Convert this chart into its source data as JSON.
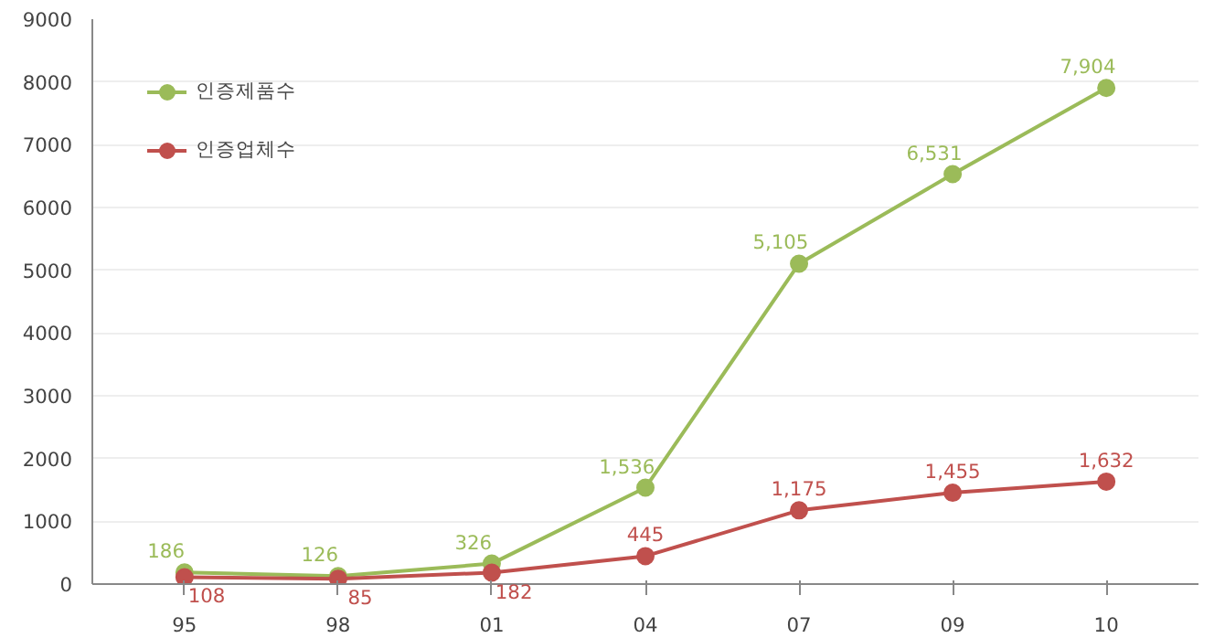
{
  "chart_data": {
    "type": "line",
    "categories": [
      "95",
      "98",
      "01",
      "04",
      "07",
      "09",
      "10"
    ],
    "series": [
      {
        "name": "인증제품수",
        "color": "#9bbb59",
        "values": [
          186,
          126,
          326,
          1536,
          5105,
          6531,
          7904
        ],
        "value_labels": [
          "186",
          "126",
          "326",
          "1,536",
          "5,105",
          "6,531",
          "7,904"
        ]
      },
      {
        "name": "인증업체수",
        "color": "#c0504d",
        "values": [
          108,
          85,
          182,
          445,
          1175,
          1455,
          1632
        ],
        "value_labels": [
          "108",
          "85",
          "182",
          "445",
          "1,175",
          "1,455",
          "1,632"
        ]
      }
    ],
    "ylim": [
      0,
      9000
    ],
    "yticks": [
      0,
      1000,
      2000,
      3000,
      4000,
      5000,
      6000,
      7000,
      8000,
      9000
    ],
    "grid": "y",
    "legend": "top left",
    "marker": "circle",
    "line_style": "solid"
  }
}
